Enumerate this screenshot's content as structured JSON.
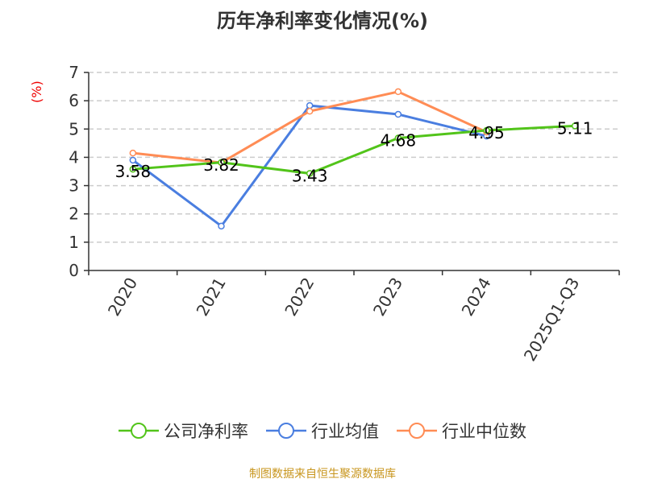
{
  "chart_data": {
    "type": "line",
    "title": "历年净利率变化情况(%)",
    "ylabel": "(%)",
    "xlabel": "",
    "categories": [
      "2020",
      "2021",
      "2022",
      "2023",
      "2024",
      "2025Q1-Q3"
    ],
    "ylim": [
      0,
      7
    ],
    "yticks": [
      0,
      1,
      2,
      3,
      4,
      5,
      6,
      7
    ],
    "grid": true,
    "legend_position": "bottom",
    "series": [
      {
        "name": "公司净利率",
        "color": "#52c41a",
        "values": [
          3.58,
          3.82,
          3.43,
          4.68,
          4.95,
          5.11
        ],
        "labels": [
          "3.58",
          "3.82",
          "3.43",
          "4.68",
          "4.95",
          "5.11"
        ]
      },
      {
        "name": "行业均值",
        "color": "#4a7ee0",
        "values": [
          3.9,
          1.57,
          5.83,
          5.52,
          4.75,
          null
        ]
      },
      {
        "name": "行业中位数",
        "color": "#ff8c55",
        "values": [
          4.15,
          3.81,
          5.63,
          6.32,
          4.89,
          null
        ]
      }
    ]
  },
  "source": "制图数据来自恒生聚源数据库"
}
